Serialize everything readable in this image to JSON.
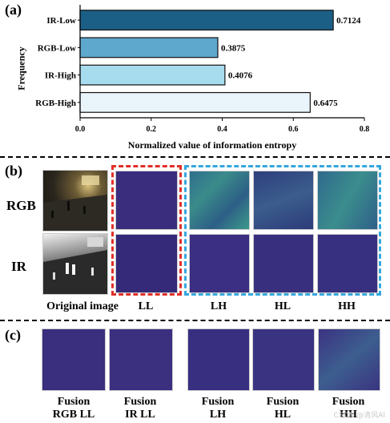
{
  "panel_a": {
    "label": "(a)",
    "chart_data": {
      "type": "bar",
      "orientation": "horizontal",
      "categories": [
        "IR-Low",
        "RGB-Low",
        "IR-High",
        "RGB-High"
      ],
      "values": [
        0.7124,
        0.3875,
        0.4076,
        0.6475
      ],
      "value_labels": [
        "0.7124",
        "0.3875",
        "0.4076",
        "0.6475"
      ],
      "colors": [
        "#1c5f86",
        "#5ea7cd",
        "#a7dcef",
        "#eaf4fb"
      ],
      "xlabel": "Normalized value of information entropy",
      "ylabel": "Frequency",
      "xlim": [
        0,
        0.8
      ],
      "xticks": [
        "0.0",
        "0.2",
        "0.4",
        "0.6",
        "0.8"
      ],
      "grid": false
    }
  },
  "panel_b": {
    "label": "(b)",
    "rows": [
      "RGB",
      "IR"
    ],
    "columns": [
      "Original image",
      "LL",
      "LH",
      "HL",
      "HH"
    ],
    "frame_colors": {
      "low": "#e0302a",
      "high": "#35a7de"
    }
  },
  "panel_c": {
    "label": "(c)",
    "items": [
      {
        "line1": "Fusion",
        "line2": "RGB LL"
      },
      {
        "line1": "Fusion",
        "line2": "IR LL"
      },
      {
        "line1": "Fusion",
        "line2": "LH"
      },
      {
        "line1": "Fusion",
        "line2": "HL"
      },
      {
        "line1": "Fusion",
        "line2": "HH"
      }
    ]
  },
  "watermark": "CSDN @清风AI"
}
